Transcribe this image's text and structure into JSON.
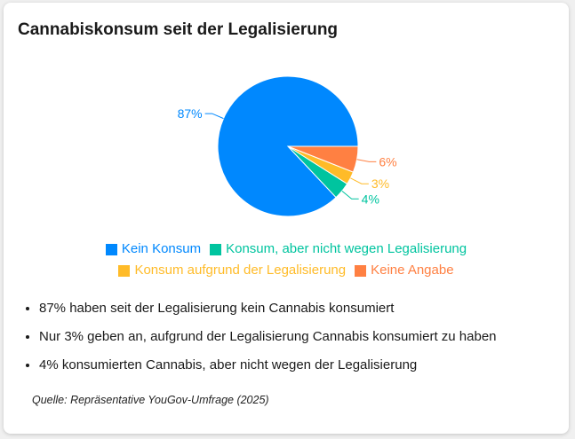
{
  "chart_data": {
    "type": "pie",
    "title": "Cannabiskonsum seit der Legalisierung",
    "slices": [
      {
        "label": "Kein Konsum",
        "value": 87,
        "data_label": "87%",
        "color": "#0088fe"
      },
      {
        "label": "Konsum, aber nicht wegen Legalisierung",
        "value": 4,
        "data_label": "4%",
        "color": "#00c49f"
      },
      {
        "label": "Konsum aufgrund der Legalisierung",
        "value": 3,
        "data_label": "3%",
        "color": "#ffbb28"
      },
      {
        "label": "Keine Angabe",
        "value": 6,
        "data_label": "6%",
        "color": "#ff8042"
      }
    ],
    "legend_position": "bottom"
  },
  "bullets": [
    "87% haben seit der Legalisierung kein Cannabis konsumiert",
    "Nur 3% geben an, aufgrund der Legalisierung Cannabis konsumiert zu haben",
    "4% konsumierten Cannabis, aber nicht wegen der Legalisierung"
  ],
  "source": "Quelle: Repräsentative YouGov-Umfrage (2025)"
}
